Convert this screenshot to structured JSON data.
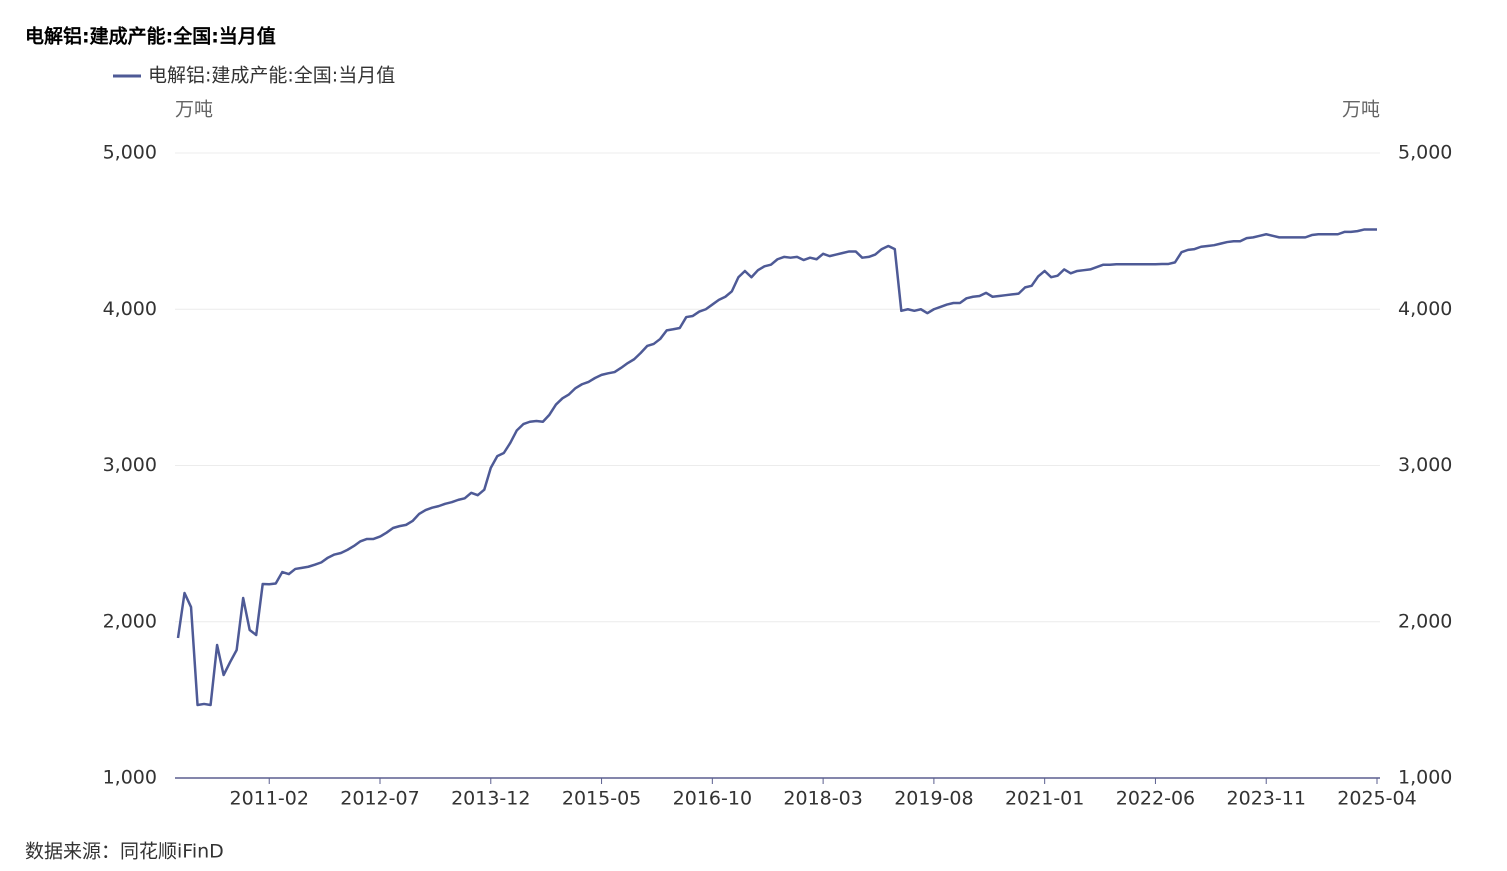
{
  "chart_data": {
    "type": "line",
    "title": "电解铝:建成产能:全国:当月值",
    "ylabel": "万吨",
    "y2label": "万吨",
    "source": "数据来源：同花顺iFinD",
    "categories": [
      null,
      null,
      null,
      null,
      null,
      null,
      null,
      null,
      null,
      null,
      null,
      null,
      null,
      null,
      "2011-02",
      null,
      null,
      null,
      null,
      null,
      null,
      null,
      null,
      null,
      null,
      null,
      null,
      null,
      null,
      null,
      null,
      "2012-07",
      null,
      null,
      null,
      null,
      null,
      null,
      null,
      null,
      null,
      null,
      null,
      null,
      null,
      null,
      null,
      null,
      "2013-12",
      null,
      null,
      null,
      null,
      null,
      null,
      null,
      null,
      null,
      null,
      null,
      null,
      null,
      null,
      null,
      null,
      "2015-05",
      null,
      null,
      null,
      null,
      null,
      null,
      null,
      null,
      null,
      null,
      null,
      null,
      null,
      null,
      null,
      null,
      "2016-10",
      null,
      null,
      null,
      null,
      null,
      null,
      null,
      null,
      null,
      null,
      null,
      null,
      null,
      null,
      null,
      null,
      "2018-03",
      null,
      null,
      null,
      null,
      null,
      null,
      null,
      null,
      null,
      null,
      null,
      null,
      null,
      null,
      null,
      null,
      "2019-08",
      null,
      null,
      null,
      null,
      null,
      null,
      null,
      null,
      null,
      null,
      null,
      null,
      null,
      null,
      null,
      null,
      "2021-01",
      null,
      null,
      null,
      null,
      null,
      null,
      null,
      null,
      null,
      null,
      null,
      null,
      null,
      null,
      null,
      null,
      "2022-06",
      null,
      null,
      null,
      null,
      null,
      null,
      null,
      null,
      null,
      null,
      null,
      null,
      null,
      null,
      null,
      null,
      "2023-11",
      null,
      null,
      null,
      null,
      null,
      null,
      null,
      null,
      null,
      null,
      null,
      null,
      null,
      null,
      null,
      null,
      "2025-04"
    ],
    "series": [
      {
        "name": "电解铝:建成产能:全国:当月值",
        "color": "#4e5a96",
        "values": [
          1896,
          2184,
          2094,
          1467,
          1474,
          1467,
          1851,
          1659,
          1742,
          1819,
          2152,
          1947,
          1915,
          2242,
          2240,
          2245,
          2318,
          2305,
          2338,
          2345,
          2352,
          2365,
          2380,
          2410,
          2430,
          2440,
          2460,
          2485,
          2515,
          2530,
          2530,
          2545,
          2570,
          2600,
          2612,
          2620,
          2645,
          2690,
          2715,
          2730,
          2740,
          2755,
          2765,
          2780,
          2790,
          2825,
          2810,
          2845,
          2985,
          3060,
          3080,
          3145,
          3225,
          3265,
          3280,
          3285,
          3280,
          3325,
          3390,
          3430,
          3455,
          3495,
          3520,
          3535,
          3560,
          3580,
          3590,
          3598,
          3625,
          3655,
          3680,
          3720,
          3765,
          3778,
          3810,
          3865,
          3872,
          3880,
          3950,
          3957,
          3985,
          4000,
          4030,
          4060,
          4080,
          4115,
          4205,
          4245,
          4205,
          4250,
          4275,
          4285,
          4320,
          4335,
          4330,
          4335,
          4315,
          4330,
          4320,
          4355,
          4340,
          4350,
          4360,
          4370,
          4370,
          4330,
          4335,
          4350,
          4385,
          4405,
          4385,
          3990,
          4000,
          3990,
          4000,
          3975,
          4000,
          4015,
          4030,
          4040,
          4040,
          4070,
          4080,
          4085,
          4105,
          4080,
          4085,
          4090,
          4095,
          4100,
          4140,
          4150,
          4210,
          4245,
          4205,
          4215,
          4255,
          4230,
          4245,
          4250,
          4255,
          4270,
          4285,
          4285,
          4288,
          4288,
          4288,
          4288,
          4288,
          4288,
          4288,
          4290,
          4290,
          4300,
          4365,
          4380,
          4385,
          4400,
          4405,
          4410,
          4420,
          4430,
          4435,
          4435,
          4455,
          4460,
          4470,
          4480,
          4470,
          4460,
          4460,
          4460,
          4460,
          4460,
          4475,
          4480,
          4480,
          4480,
          4480,
          4495,
          4495,
          4500,
          4510,
          4510,
          4510
        ]
      }
    ],
    "ylim": [
      1000,
      5000
    ],
    "yticks": [
      {
        "value": 1000,
        "label": "1,000"
      },
      {
        "value": 2000,
        "label": "2,000"
      },
      {
        "value": 3000,
        "label": "3,000"
      },
      {
        "value": 4000,
        "label": "4,000"
      },
      {
        "value": 5000,
        "label": "5,000"
      }
    ],
    "y2lim": [
      1000,
      5000
    ],
    "y2ticks": [
      {
        "value": 1000,
        "label": "1,000"
      },
      {
        "value": 2000,
        "label": "2,000"
      },
      {
        "value": 3000,
        "label": "3,000"
      },
      {
        "value": 4000,
        "label": "4,000"
      },
      {
        "value": 5000,
        "label": "5,000"
      }
    ],
    "grid": true,
    "legend": "top-left"
  }
}
